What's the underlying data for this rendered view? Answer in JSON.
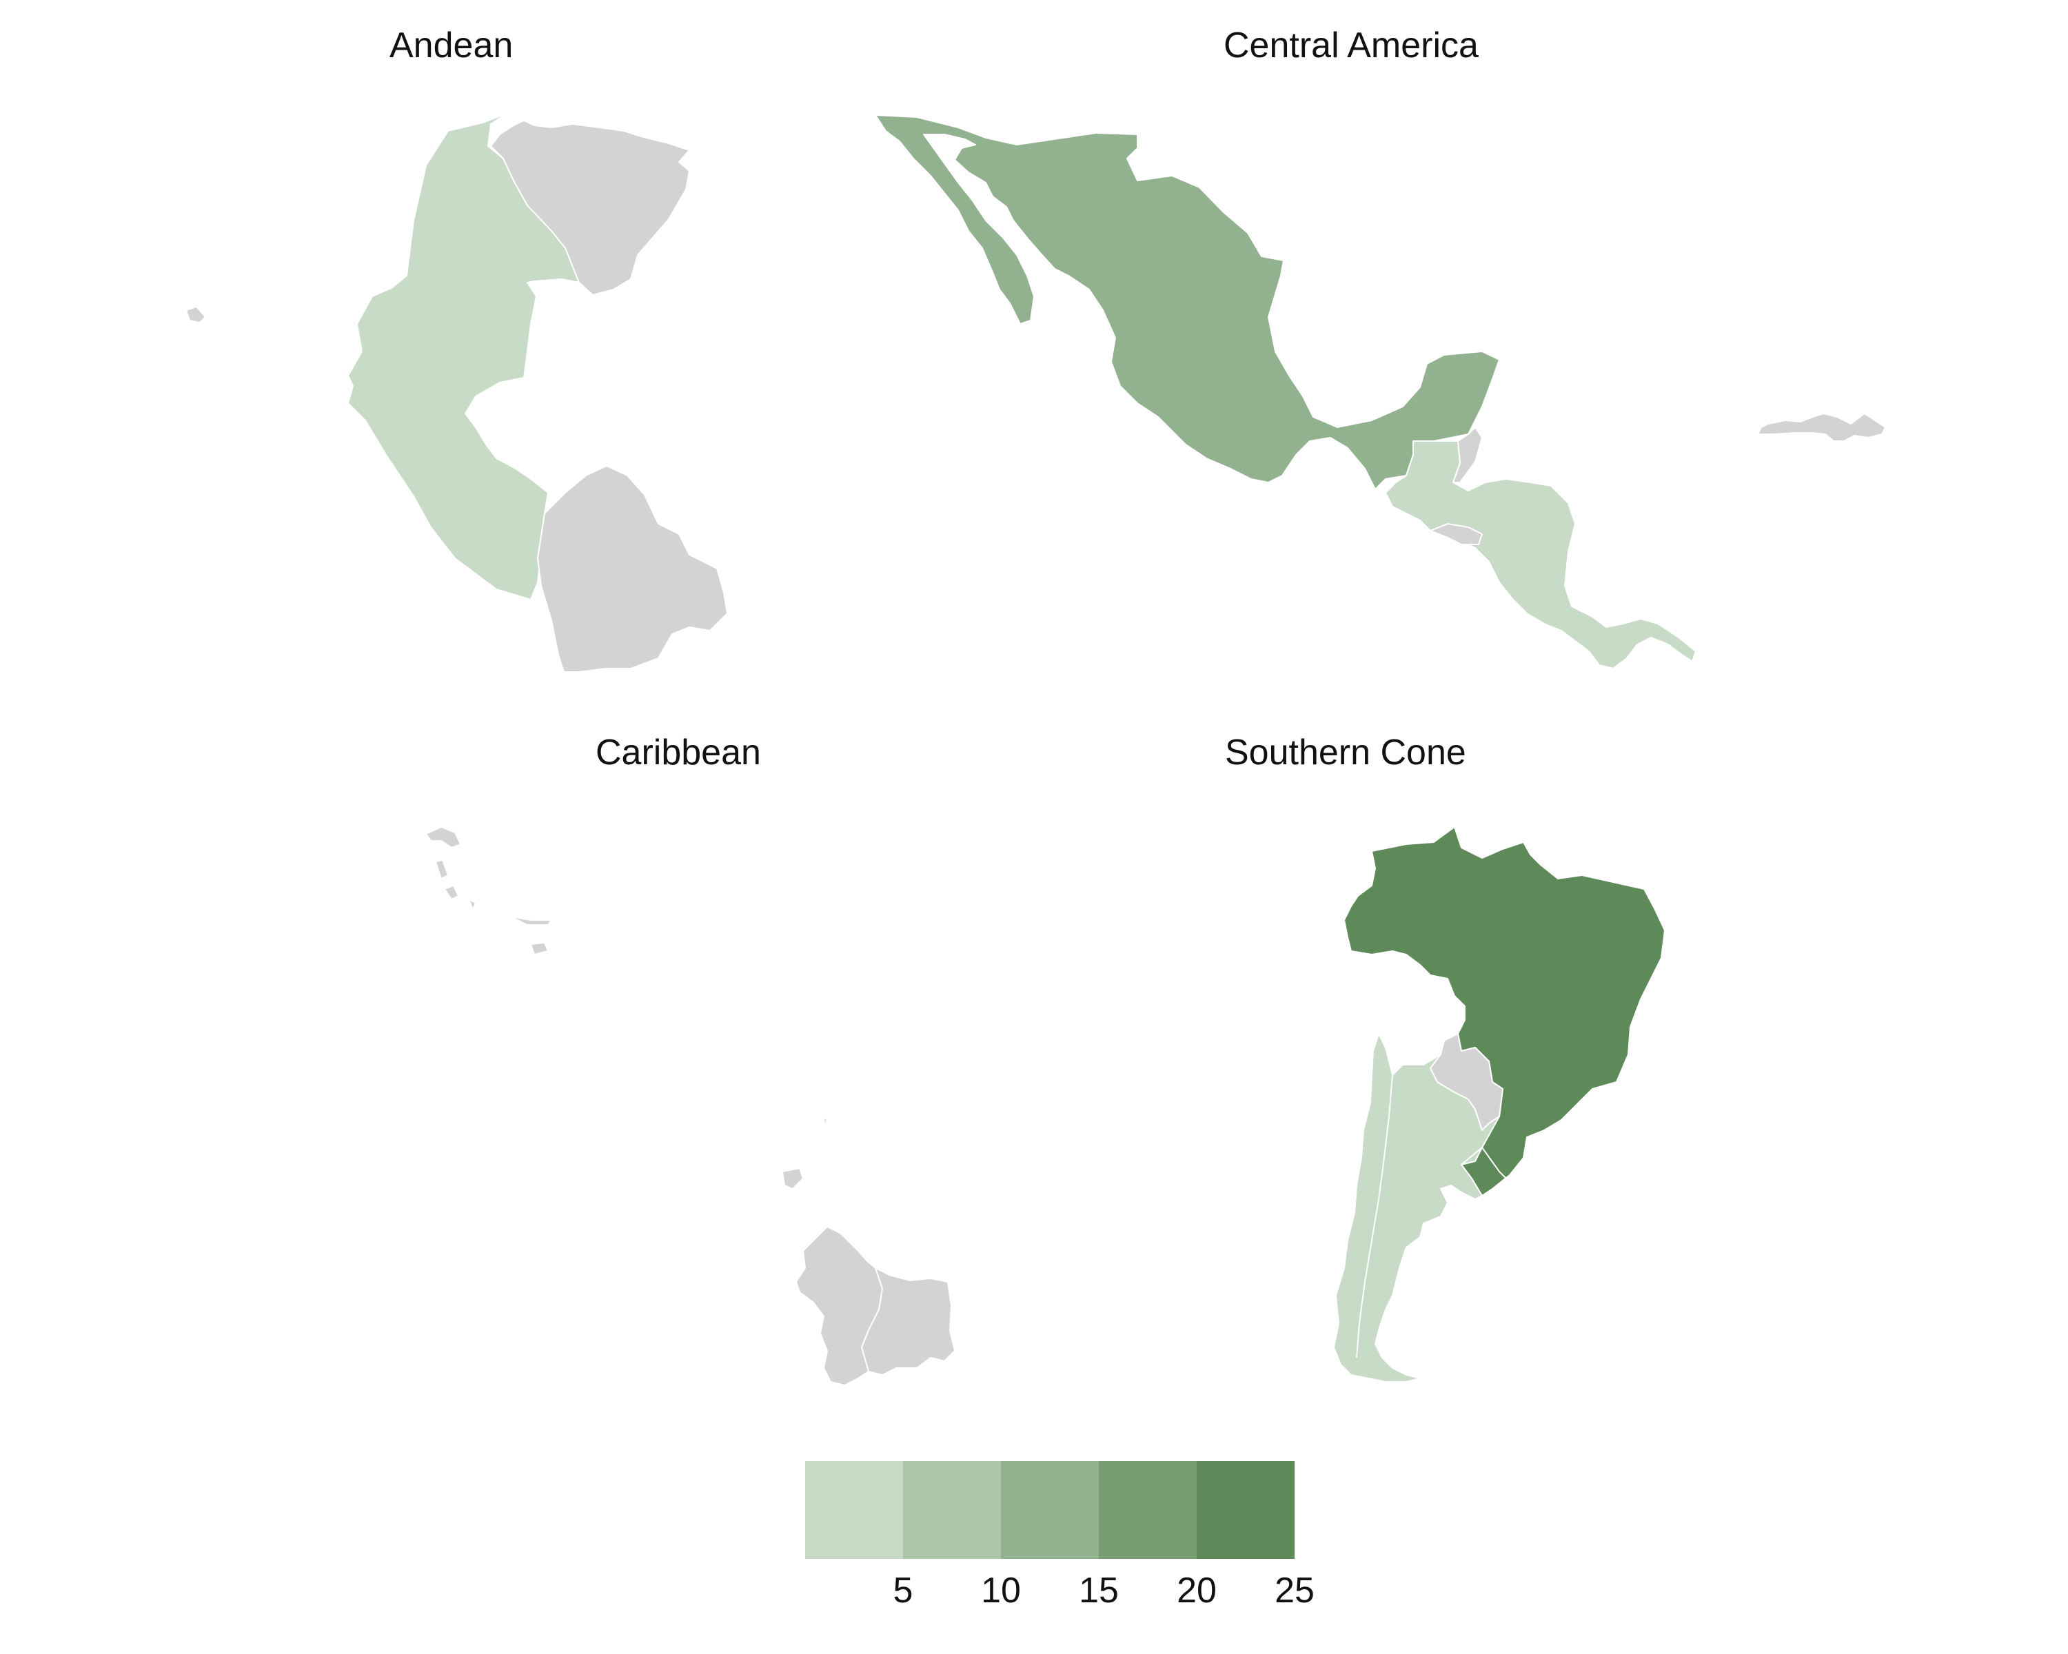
{
  "panels": [
    {
      "title": "Andean",
      "region": "andean"
    },
    {
      "title": "Central America",
      "region": "central_america"
    },
    {
      "title": "Caribbean",
      "region": "caribbean"
    },
    {
      "title": "Southern Cone",
      "region": "southern_cone"
    }
  ],
  "colors": {
    "no_data": "#d3d3d3",
    "border": "#ffffff",
    "scale": [
      "#c7dbc6",
      "#abc6a9",
      "#92b18e",
      "#789d73",
      "#5e8959"
    ]
  },
  "legend": {
    "bin_edges": [
      0,
      5,
      10,
      15,
      20,
      25
    ],
    "tick_labels": [
      "5",
      "10",
      "15",
      "20",
      "25"
    ]
  },
  "chart_data": {
    "type": "choropleth",
    "regions": [
      {
        "region": "Andean",
        "shades": [
          {
            "area": "Colombia / Ecuador / Peru",
            "bin": 0
          },
          {
            "area": "Venezuela",
            "bin": null
          },
          {
            "area": "Bolivia",
            "bin": null
          }
        ]
      },
      {
        "region": "Central America",
        "shades": [
          {
            "area": "Mexico",
            "bin": 2
          },
          {
            "area": "Guatemala / Honduras / Nicaragua / Costa Rica / Panama",
            "bin": 0
          },
          {
            "area": "Belize / El Salvador",
            "bin": null
          },
          {
            "area": "Hispaniola",
            "bin": null
          }
        ]
      },
      {
        "region": "Caribbean",
        "shades": [
          {
            "area": "Bahamas",
            "bin": null
          },
          {
            "area": "Caribbean islands",
            "bin": null
          },
          {
            "area": "Guyana / Suriname",
            "bin": null
          }
        ]
      },
      {
        "region": "Southern Cone",
        "shades": [
          {
            "area": "Brazil",
            "bin": 4
          },
          {
            "area": "Chile / Argentina / Uruguay",
            "bin": 0
          },
          {
            "area": "Paraguay",
            "bin": null
          }
        ]
      }
    ]
  }
}
